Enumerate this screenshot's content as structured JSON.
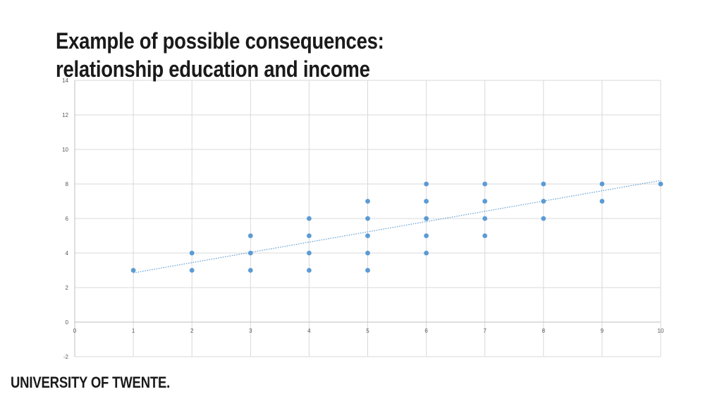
{
  "slide": {
    "title_line1": "Example of possible consequences:",
    "title_line2": "relationship education and income",
    "logo_text": "UNIVERSITY OF TWENTE."
  },
  "chart_data": {
    "type": "scatter",
    "xlim": [
      0,
      10
    ],
    "ylim": [
      -2,
      14
    ],
    "x_ticks": [
      0,
      1,
      2,
      3,
      4,
      5,
      6,
      7,
      8,
      9,
      10
    ],
    "y_ticks": [
      -2,
      0,
      2,
      4,
      6,
      8,
      10,
      12,
      14
    ],
    "grid": true,
    "legend": "none",
    "marker_color": "#5b9bd5",
    "trendline": {
      "type": "linear",
      "from": [
        1,
        2.85
      ],
      "to": [
        10,
        8.2
      ],
      "style": "dotted",
      "color": "#5b9bd5"
    },
    "points": [
      [
        1,
        3
      ],
      [
        2,
        3
      ],
      [
        2,
        4
      ],
      [
        3,
        3
      ],
      [
        3,
        4
      ],
      [
        3,
        5
      ],
      [
        4,
        3
      ],
      [
        4,
        4
      ],
      [
        4,
        5
      ],
      [
        4,
        6
      ],
      [
        5,
        3
      ],
      [
        5,
        4
      ],
      [
        5,
        5
      ],
      [
        5,
        6
      ],
      [
        5,
        7
      ],
      [
        6,
        4
      ],
      [
        6,
        5
      ],
      [
        6,
        6
      ],
      [
        6,
        7
      ],
      [
        6,
        8
      ],
      [
        7,
        5
      ],
      [
        7,
        6
      ],
      [
        7,
        7
      ],
      [
        7,
        8
      ],
      [
        8,
        6
      ],
      [
        8,
        7
      ],
      [
        8,
        8
      ],
      [
        9,
        7
      ],
      [
        9,
        8
      ],
      [
        10,
        8
      ]
    ]
  }
}
